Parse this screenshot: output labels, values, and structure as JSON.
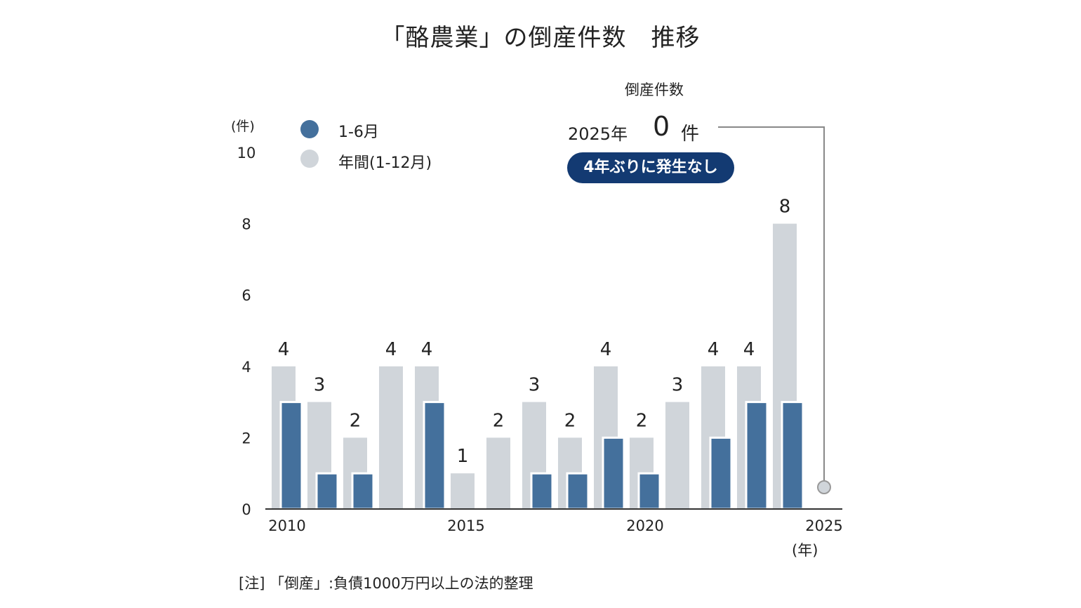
{
  "chart_data": {
    "type": "bar",
    "title": "「酪農業」の倒産件数　推移",
    "ylabel": "(件)",
    "xlabel": "(年)",
    "ylim": [
      0,
      10
    ],
    "yticks": [
      "0",
      "2",
      "4",
      "6",
      "8",
      "10"
    ],
    "xticks": [
      "2010",
      "2015",
      "2020",
      "2025"
    ],
    "categories": [
      2010,
      2011,
      2012,
      2013,
      2014,
      2015,
      2016,
      2017,
      2018,
      2019,
      2020,
      2021,
      2022,
      2023,
      2024,
      2025
    ],
    "series": [
      {
        "name": "年間(1-12月)",
        "color": "#d0d5da",
        "values": [
          4,
          3,
          2,
          4,
          4,
          1,
          2,
          3,
          2,
          4,
          2,
          3,
          4,
          4,
          8,
          0
        ]
      },
      {
        "name": "1-6月",
        "color": "#44709c",
        "values": [
          3,
          1,
          1,
          0,
          3,
          0,
          0,
          1,
          1,
          2,
          1,
          0,
          2,
          3,
          3,
          0
        ]
      }
    ],
    "legend": {
      "placement": "top-left",
      "items": [
        "1-6月",
        "年間(1-12月)"
      ]
    },
    "annotation": {
      "header": "倒産件数",
      "year": "2025年",
      "value": "0",
      "unit": "件",
      "badge": "4年ぶりに発生なし",
      "badge_color": "#133a72"
    },
    "note": "[注] 「倒産」:負債1000万円以上の法的整理"
  }
}
